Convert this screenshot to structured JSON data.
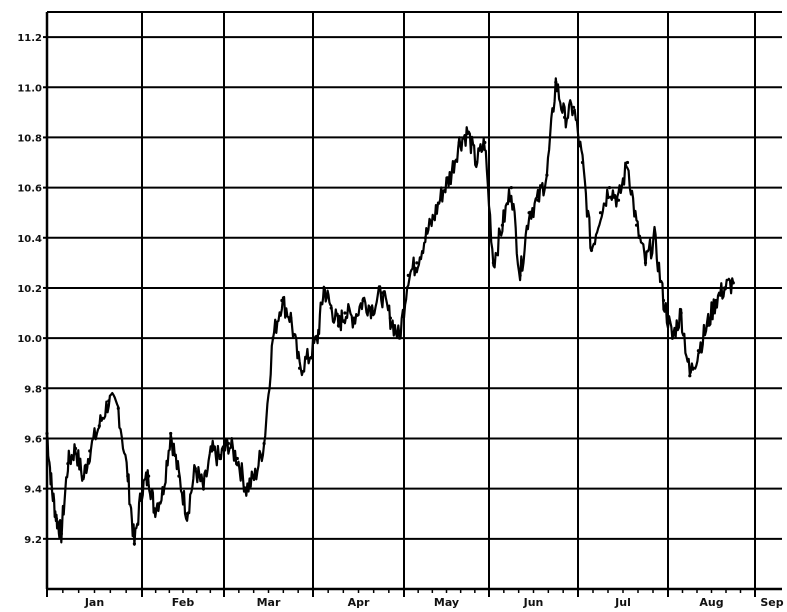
{
  "chart_data": {
    "type": "line",
    "title": "",
    "xlabel": "",
    "ylabel": "",
    "grid": true,
    "legend": "none",
    "line_color": "#000000",
    "x_tick_labels": [
      "Jan",
      "Feb",
      "Mar",
      "Apr",
      "May",
      "Jun",
      "Jul",
      "Aug",
      "Sep"
    ],
    "y_tick_labels": [
      "9.2",
      "9.4",
      "9.6",
      "9.8",
      "10.0",
      "10.2",
      "10.4",
      "10.6",
      "10.8",
      "11.0",
      "11.2"
    ],
    "y_ticks": [
      9.2,
      9.4,
      9.6,
      9.8,
      10.0,
      10.2,
      10.4,
      10.6,
      10.8,
      11.0,
      11.2
    ],
    "ylim": [
      9.0,
      11.3
    ],
    "xlim_months": [
      0.0,
      8.33
    ],
    "series": [
      {
        "x": [
          0.0,
          0.05,
          0.1,
          0.15,
          0.22,
          0.3,
          0.38,
          0.45,
          0.55,
          0.65,
          0.75,
          0.85,
          0.92,
          1.0,
          1.08,
          1.15,
          1.25,
          1.35,
          1.45,
          1.55,
          1.65,
          1.75,
          1.85,
          1.95,
          2.05,
          2.15,
          2.25,
          2.35,
          2.45,
          2.55,
          2.65,
          2.75,
          2.85,
          2.95,
          3.05,
          3.12,
          3.2,
          3.28,
          3.35,
          3.45,
          3.55,
          3.65,
          3.75,
          3.85,
          3.95,
          4.05,
          4.15,
          4.25,
          4.35,
          4.45,
          4.55,
          4.65,
          4.75,
          4.85,
          4.95,
          5.05,
          5.15,
          5.25,
          5.35,
          5.45,
          5.55,
          5.65,
          5.75,
          5.85,
          5.95,
          6.05,
          6.15,
          6.25,
          6.35,
          6.45,
          6.55,
          6.65,
          6.75,
          6.85,
          6.95,
          7.05,
          7.15,
          7.25,
          7.35,
          7.45,
          7.55,
          7.65,
          7.75
        ],
        "y": [
          9.62,
          9.4,
          9.28,
          9.22,
          9.5,
          9.56,
          9.44,
          9.55,
          9.65,
          9.75,
          9.72,
          9.45,
          9.18,
          9.4,
          9.45,
          9.32,
          9.38,
          9.62,
          9.45,
          9.3,
          9.48,
          9.4,
          9.55,
          9.52,
          9.58,
          9.52,
          9.4,
          9.45,
          9.58,
          10.0,
          10.15,
          10.08,
          9.88,
          9.92,
          10.0,
          10.2,
          10.12,
          10.05,
          10.1,
          10.08,
          10.15,
          10.12,
          10.18,
          10.08,
          10.0,
          10.25,
          10.3,
          10.4,
          10.48,
          10.58,
          10.65,
          10.78,
          10.82,
          10.7,
          10.78,
          10.3,
          10.45,
          10.6,
          10.25,
          10.5,
          10.55,
          10.65,
          11.02,
          10.88,
          10.92,
          10.7,
          10.35,
          10.5,
          10.6,
          10.55,
          10.7,
          10.45,
          10.3,
          10.4,
          10.15,
          10.0,
          10.1,
          9.85,
          9.95,
          10.05,
          10.15,
          10.2,
          10.22
        ]
      }
    ]
  }
}
